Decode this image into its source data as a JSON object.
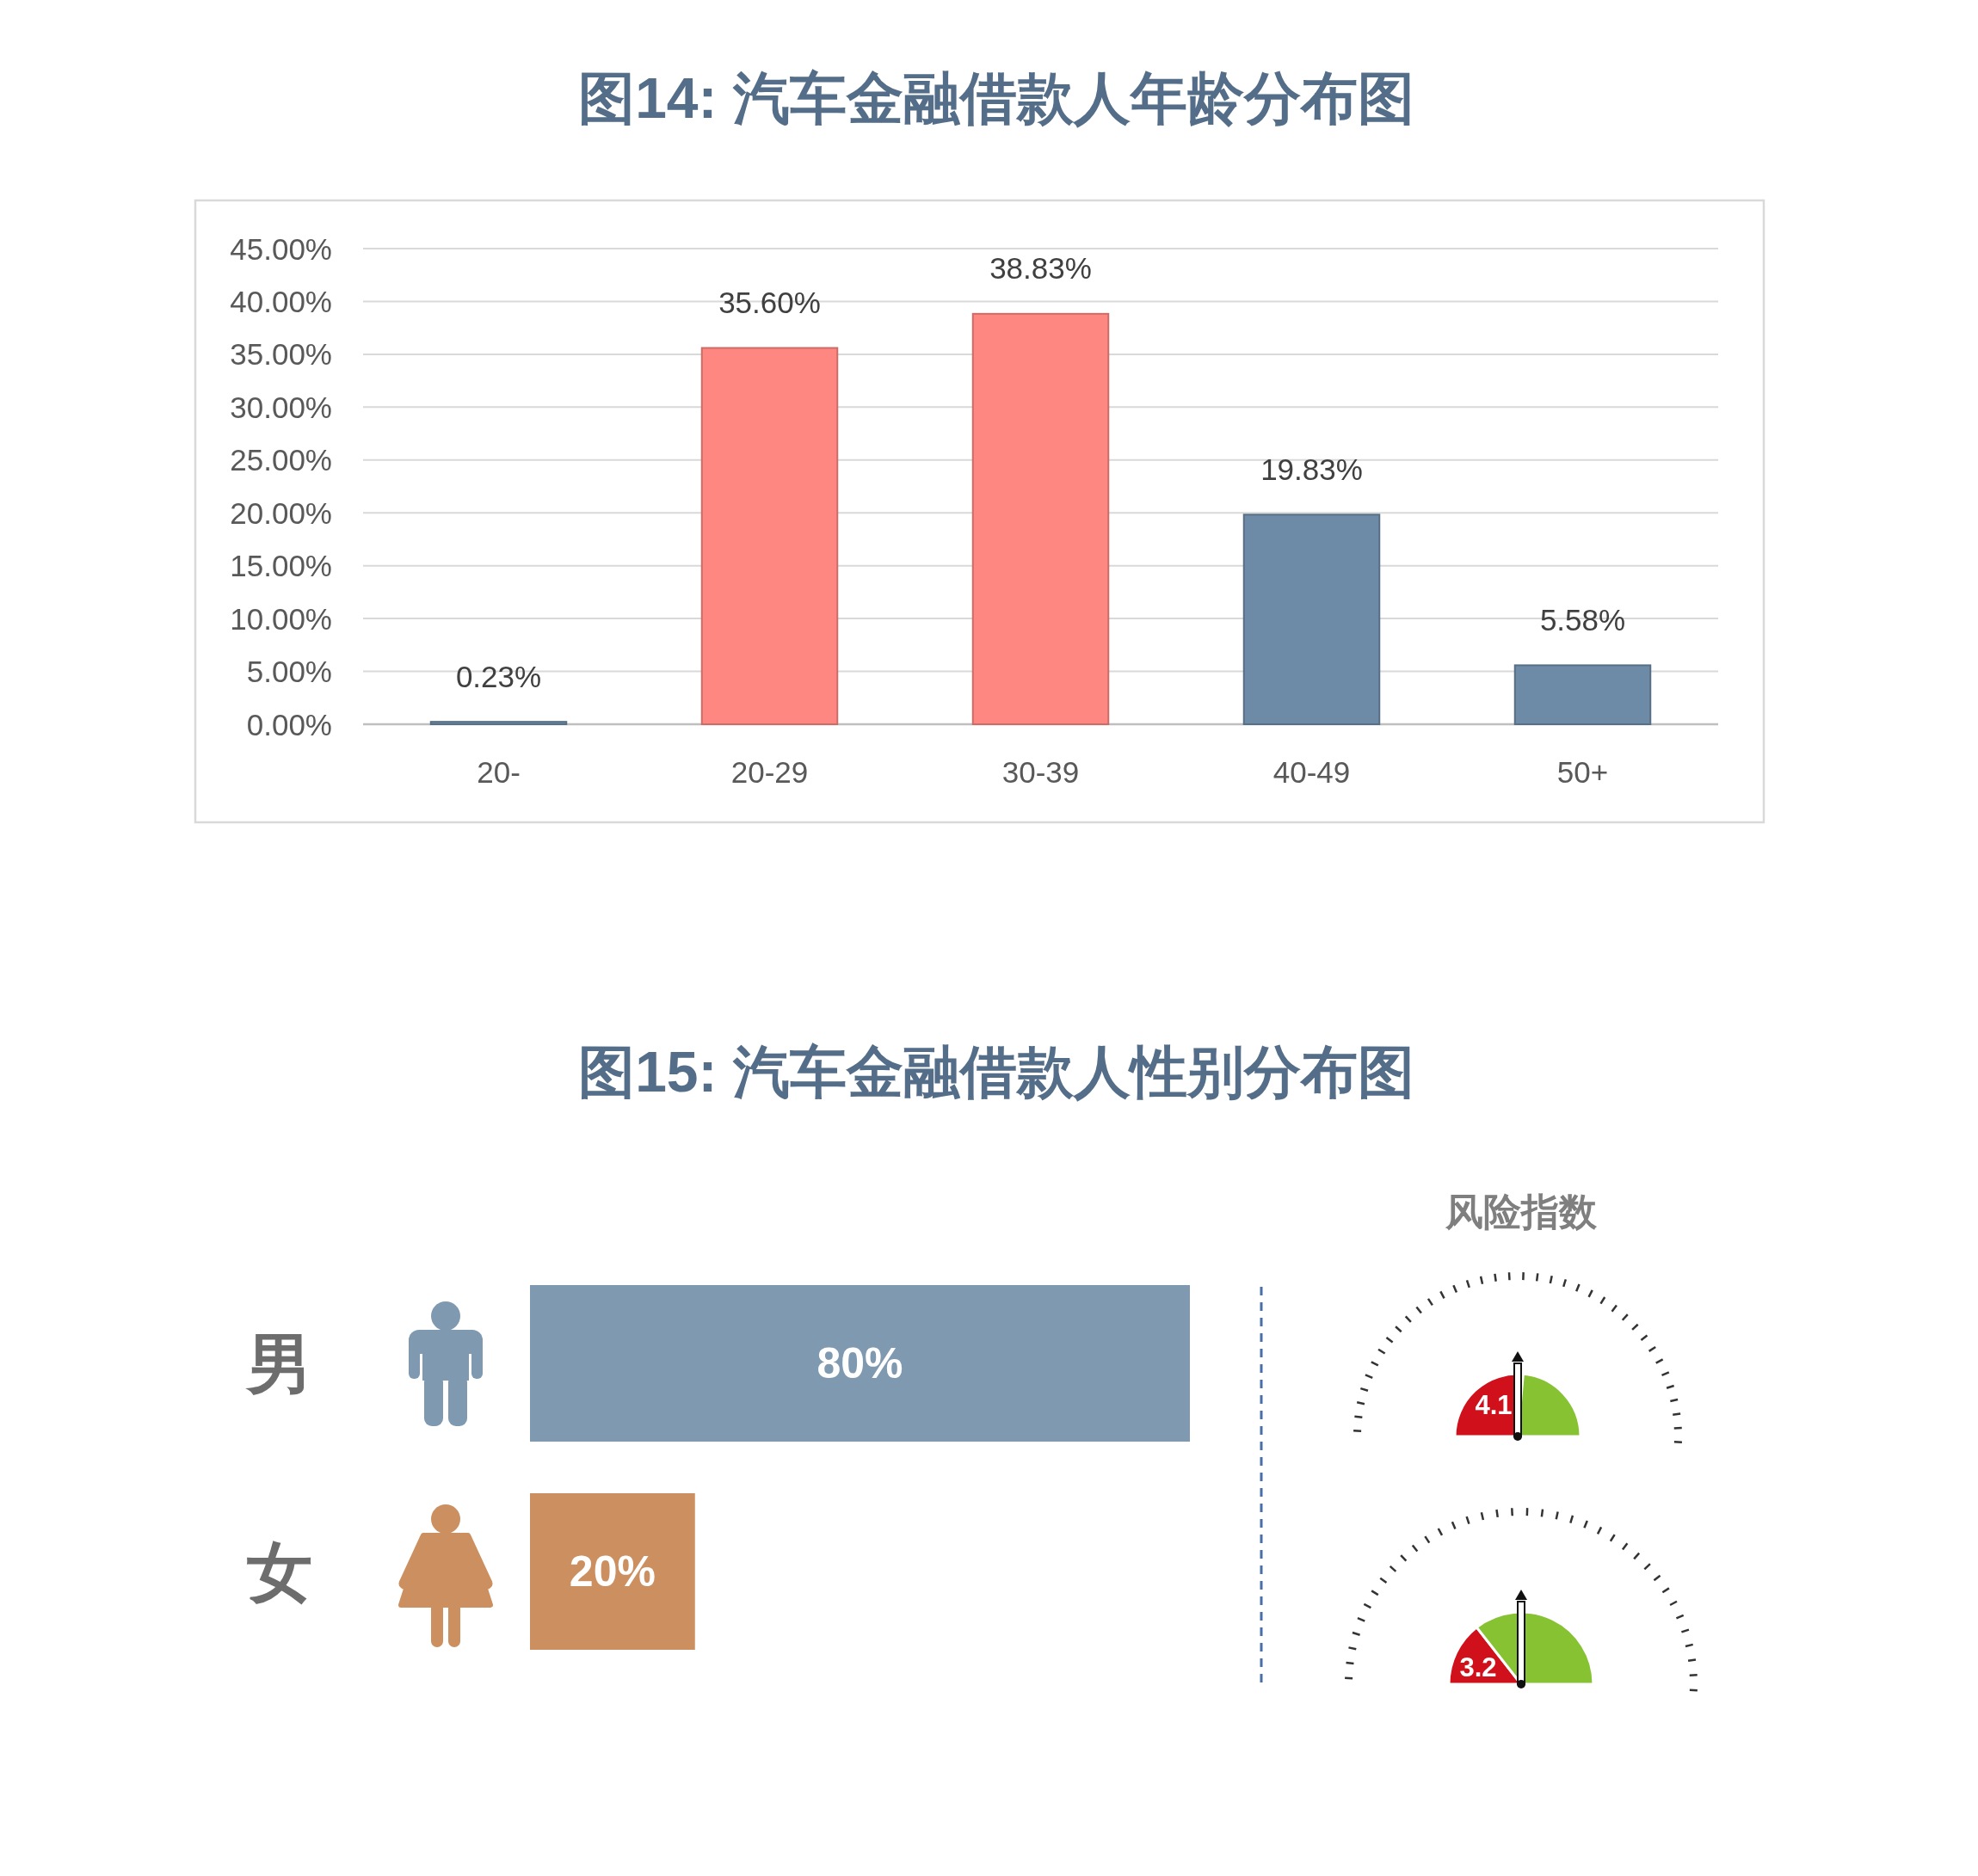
{
  "chart_data": [
    {
      "type": "bar",
      "title": "图14: 汽车金融借款人年龄分布图",
      "categories": [
        "20-",
        "20-29",
        "30-39",
        "40-49",
        "50+"
      ],
      "values": [
        0.23,
        35.6,
        38.83,
        19.83,
        5.58
      ],
      "colors": [
        "#6d8ba6",
        "#ff8781",
        "#ff8781",
        "#6d8ba6",
        "#6d8ba6"
      ],
      "ylim": [
        0,
        45
      ],
      "yticks": [
        {
          "value": 0,
          "label": "0.00%"
        },
        {
          "value": 5,
          "label": "5.00%"
        },
        {
          "value": 10,
          "label": "10.00%"
        },
        {
          "value": 15,
          "label": "15.00%"
        },
        {
          "value": 20,
          "label": "20.00%"
        },
        {
          "value": 25,
          "label": "25.00%"
        },
        {
          "value": 30,
          "label": "30.00%"
        },
        {
          "value": 35,
          "label": "35.00%"
        },
        {
          "value": 40,
          "label": "40.00%"
        },
        {
          "value": 45,
          "label": "45.00%"
        }
      ],
      "value_labels": [
        "0.23%",
        "35.60%",
        "38.83%",
        "19.83%",
        "5.58%"
      ],
      "grid": "y"
    },
    {
      "type": "bar",
      "orientation": "horizontal",
      "title": "图15: 汽车金融借款人性别分布图",
      "categories": [
        "男",
        "女"
      ],
      "values": [
        80,
        20
      ],
      "colors": [
        "#7f9ab0",
        "#cc8f5f"
      ],
      "value_labels": [
        "80%",
        "20%"
      ]
    },
    {
      "type": "other",
      "title": "风险指数",
      "values": [
        4.1,
        3.2
      ],
      "data_labels": true
    }
  ]
}
